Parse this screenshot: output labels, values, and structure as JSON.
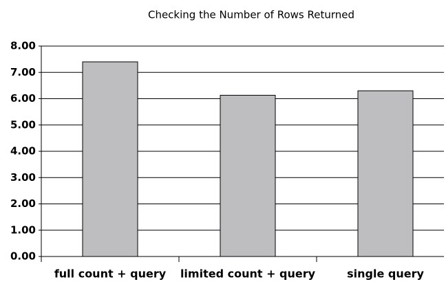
{
  "chart_data": {
    "type": "bar",
    "title": "Checking the Number of Rows Returned",
    "categories": [
      "full count + query",
      "limited count + query",
      "single query"
    ],
    "values": [
      7.4,
      6.13,
      6.3
    ],
    "color": "#bebec0",
    "ylim": [
      0,
      8
    ],
    "yticks": [
      {
        "value": 0,
        "label": "0.00"
      },
      {
        "value": 1,
        "label": "1.00"
      },
      {
        "value": 2,
        "label": "2.00"
      },
      {
        "value": 3,
        "label": "3.00"
      },
      {
        "value": 4,
        "label": "4.00"
      },
      {
        "value": 5,
        "label": "5.00"
      },
      {
        "value": 6,
        "label": "6.00"
      },
      {
        "value": 7,
        "label": "7.00"
      },
      {
        "value": 8,
        "label": "8.00"
      }
    ],
    "grid": true
  }
}
